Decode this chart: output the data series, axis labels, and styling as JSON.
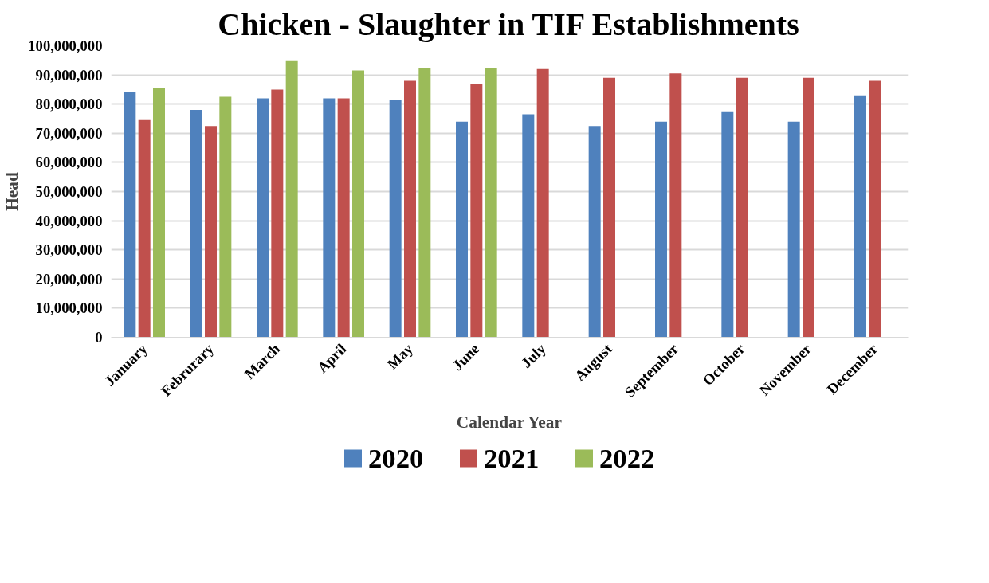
{
  "chart_data": {
    "type": "bar",
    "title": "Chicken - Slaughter in TIF Establishments",
    "xlabel": "Calendar Year",
    "ylabel": "Head",
    "categories": [
      "January",
      "Februrary",
      "March",
      "April",
      "May",
      "June",
      "July",
      "August",
      "September",
      "October",
      "November",
      "December"
    ],
    "series": [
      {
        "name": "2020",
        "color": "#4f81bd",
        "values": [
          84000000,
          78000000,
          82000000,
          82000000,
          81500000,
          74000000,
          76500000,
          72500000,
          74000000,
          77500000,
          74000000,
          83000000
        ]
      },
      {
        "name": "2021",
        "color": "#c0504d",
        "values": [
          74500000,
          72500000,
          85000000,
          82000000,
          88000000,
          87000000,
          92000000,
          89000000,
          90500000,
          89000000,
          89000000,
          88000000
        ]
      },
      {
        "name": "2022",
        "color": "#9bbb59",
        "values": [
          85500000,
          82500000,
          95000000,
          91500000,
          92500000,
          92500000,
          null,
          null,
          null,
          null,
          null,
          null
        ]
      }
    ],
    "ylim": [
      0,
      100000000
    ],
    "yticks": [
      {
        "value": 0,
        "label": "0"
      },
      {
        "value": 10000000,
        "label": "10,000,000"
      },
      {
        "value": 20000000,
        "label": "20,000,000"
      },
      {
        "value": 30000000,
        "label": "30,000,000"
      },
      {
        "value": 40000000,
        "label": "40,000,000"
      },
      {
        "value": 50000000,
        "label": "50,000,000"
      },
      {
        "value": 60000000,
        "label": "60,000,000"
      },
      {
        "value": 70000000,
        "label": "70,000,000"
      },
      {
        "value": 80000000,
        "label": "80,000,000"
      },
      {
        "value": 90000000,
        "label": "90,000,000"
      },
      {
        "value": 100000000,
        "label": "100,000,000"
      }
    ],
    "grid": "y",
    "legend": "bottom"
  }
}
